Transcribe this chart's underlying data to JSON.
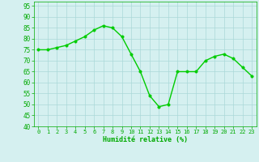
{
  "x": [
    0,
    1,
    2,
    3,
    4,
    5,
    6,
    7,
    8,
    9,
    10,
    11,
    12,
    13,
    14,
    15,
    16,
    17,
    18,
    19,
    20,
    21,
    22,
    23
  ],
  "y": [
    75,
    75,
    76,
    77,
    79,
    81,
    84,
    86,
    85,
    81,
    73,
    65,
    54,
    49,
    50,
    65,
    65,
    65,
    70,
    72,
    73,
    71,
    67,
    63
  ],
  "line_color": "#00cc00",
  "marker_color": "#00cc00",
  "bg_color": "#d5f0f0",
  "grid_color": "#aad8d8",
  "xlabel": "Humidité relative (%)",
  "xlabel_color": "#00aa00",
  "tick_color": "#00aa00",
  "ylim": [
    40,
    97
  ],
  "xlim": [
    -0.5,
    23.5
  ],
  "yticks": [
    40,
    45,
    50,
    55,
    60,
    65,
    70,
    75,
    80,
    85,
    90,
    95
  ],
  "xticks": [
    0,
    1,
    2,
    3,
    4,
    5,
    6,
    7,
    8,
    9,
    10,
    11,
    12,
    13,
    14,
    15,
    16,
    17,
    18,
    19,
    20,
    21,
    22,
    23
  ],
  "xtick_labels": [
    "0",
    "1",
    "2",
    "3",
    "4",
    "5",
    "6",
    "7",
    "8",
    "9",
    "10",
    "11",
    "12",
    "13",
    "14",
    "15",
    "16",
    "17",
    "18",
    "19",
    "20",
    "21",
    "22",
    "23"
  ],
  "linewidth": 1.0,
  "markersize": 2.5
}
